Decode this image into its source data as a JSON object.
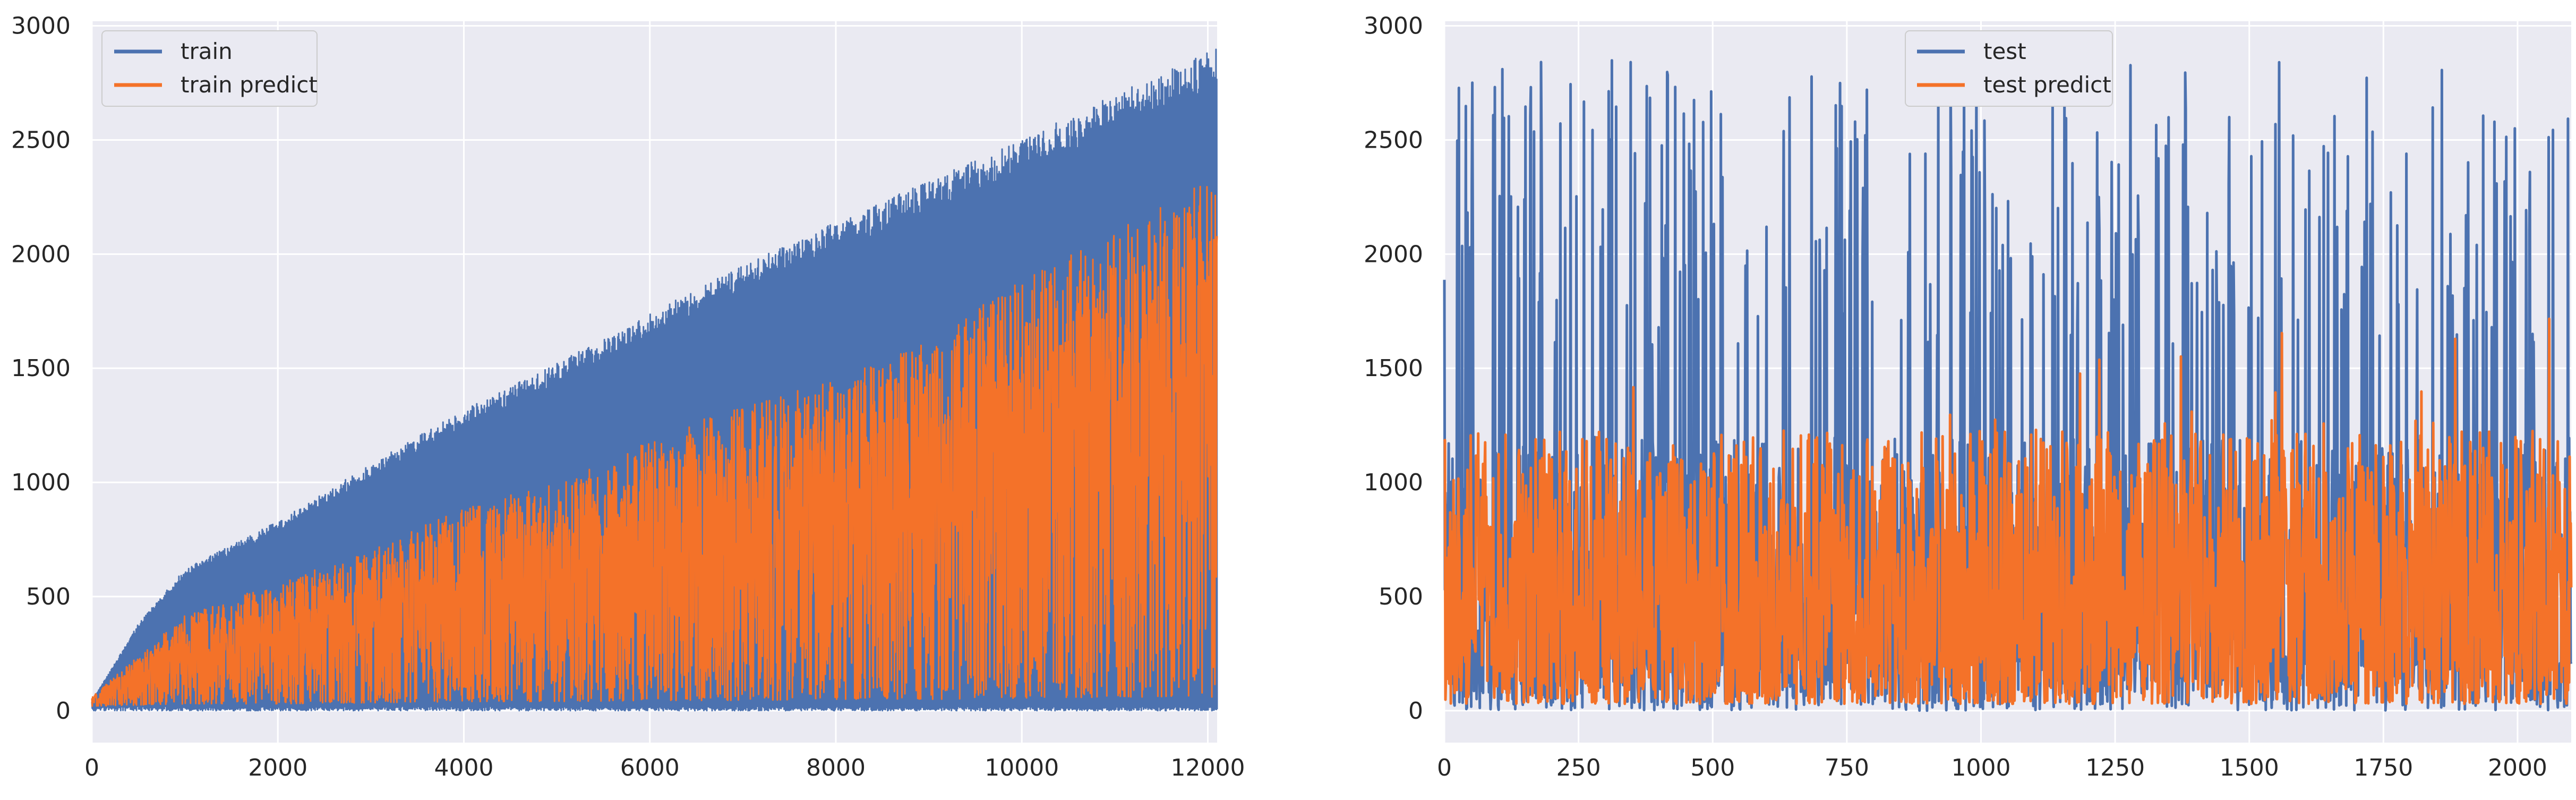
{
  "chart_data": [
    {
      "type": "line",
      "title": "",
      "xlabel": "",
      "ylabel": "",
      "xlim": [
        0,
        12100
      ],
      "ylim": [
        -140,
        3020
      ],
      "xticks": [
        0,
        2000,
        4000,
        6000,
        8000,
        10000,
        12000
      ],
      "yticks": [
        0,
        500,
        1000,
        1500,
        2000,
        2500,
        3000
      ],
      "grid": true,
      "legend": "top-left",
      "series": [
        {
          "name": "train",
          "color": "#4c72b0",
          "n_points": 12100,
          "envelope_x": [
            0,
            500,
            1000,
            2000,
            3000,
            4000,
            5000,
            6000,
            7000,
            8000,
            9000,
            10000,
            11000,
            12100
          ],
          "envelope_max": [
            40,
            380,
            620,
            830,
            1080,
            1320,
            1520,
            1740,
            1950,
            2140,
            2320,
            2500,
            2700,
            2900
          ],
          "envelope_min": [
            0,
            0,
            0,
            0,
            0,
            0,
            0,
            0,
            0,
            0,
            0,
            0,
            0,
            0
          ]
        },
        {
          "name": "train predict",
          "color": "#f47229",
          "n_points": 12100,
          "envelope_x": [
            0,
            1000,
            2000,
            3000,
            4000,
            5000,
            6000,
            7000,
            8000,
            9000,
            10000,
            11000,
            12100
          ],
          "envelope_max": [
            60,
            420,
            560,
            700,
            900,
            1000,
            1180,
            1350,
            1450,
            1620,
            1900,
            2100,
            2360
          ],
          "envelope_min": [
            20,
            30,
            30,
            35,
            40,
            40,
            45,
            45,
            50,
            50,
            55,
            60,
            60
          ]
        }
      ]
    },
    {
      "type": "line",
      "title": "",
      "xlabel": "",
      "ylabel": "",
      "xlim": [
        0,
        2100
      ],
      "ylim": [
        -140,
        3020
      ],
      "xticks": [
        0,
        250,
        500,
        750,
        1000,
        1250,
        1500,
        1750,
        2000
      ],
      "yticks": [
        0,
        500,
        1000,
        1500,
        2000,
        2500,
        3000
      ],
      "grid": true,
      "legend": "top-center",
      "series": [
        {
          "name": "test",
          "color": "#4c72b0",
          "n_points": 2100,
          "min": 0,
          "max": 2860
        },
        {
          "name": "test predict",
          "color": "#f47229",
          "n_points": 2100,
          "min": 30,
          "max": 2000
        }
      ]
    }
  ]
}
